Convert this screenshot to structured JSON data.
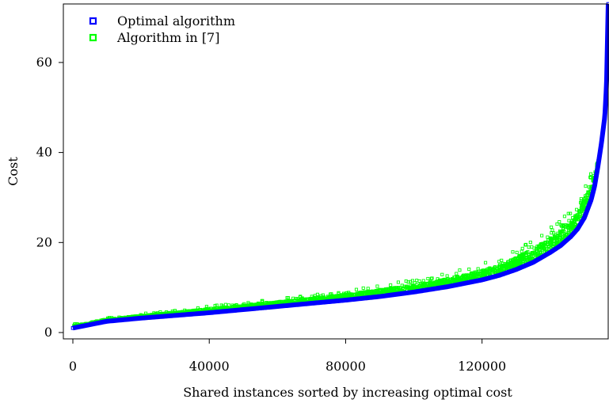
{
  "chart_data": {
    "type": "scatter",
    "title": "",
    "xlabel": "Shared instances sorted by increasing optimal cost",
    "ylabel": "Cost",
    "xlim": [
      0,
      157000
    ],
    "ylim": [
      0,
      73
    ],
    "xticks": [
      0,
      40000,
      80000,
      120000
    ],
    "yticks": [
      0,
      20,
      40,
      60
    ],
    "grid": false,
    "legend": {
      "placement": "top-left"
    },
    "series": [
      {
        "name": "Optimal algorithm",
        "color": "#0000ff",
        "marker": "square-open",
        "x": [
          0,
          10000,
          20000,
          30000,
          40000,
          50000,
          60000,
          70000,
          80000,
          90000,
          100000,
          110000,
          120000,
          125000,
          130000,
          135000,
          140000,
          143000,
          146000,
          148000,
          150000,
          152000,
          153000,
          154000,
          155000,
          156000,
          156500,
          157000
        ],
        "y": [
          1.0,
          2.5,
          3.2,
          3.8,
          4.4,
          5.1,
          5.8,
          6.5,
          7.2,
          8.0,
          9.0,
          10.2,
          11.7,
          12.7,
          14.0,
          15.6,
          17.8,
          19.3,
          21.3,
          23.0,
          25.5,
          29.5,
          32.5,
          37.0,
          42.0,
          48.0,
          55.0,
          73.0
        ]
      },
      {
        "name": "Algorithm in [7]",
        "color": "#00ff00",
        "marker": "square-open",
        "x": [
          0,
          10000,
          20000,
          30000,
          40000,
          50000,
          60000,
          70000,
          80000,
          90000,
          100000,
          110000,
          120000,
          125000,
          130000,
          135000,
          140000,
          143000,
          146000,
          148000,
          150000,
          152000,
          153000,
          154000,
          155000,
          156000,
          156500,
          157000
        ],
        "y": [
          1.5,
          3.0,
          3.8,
          4.5,
          5.3,
          6.0,
          6.8,
          7.6,
          8.5,
          9.5,
          10.6,
          12.0,
          13.8,
          15.0,
          16.6,
          18.6,
          21.0,
          22.8,
          25.0,
          27.0,
          29.5,
          33.0,
          35.5,
          38.5,
          42.0,
          48.0,
          55.0,
          66.0
        ]
      }
    ]
  }
}
